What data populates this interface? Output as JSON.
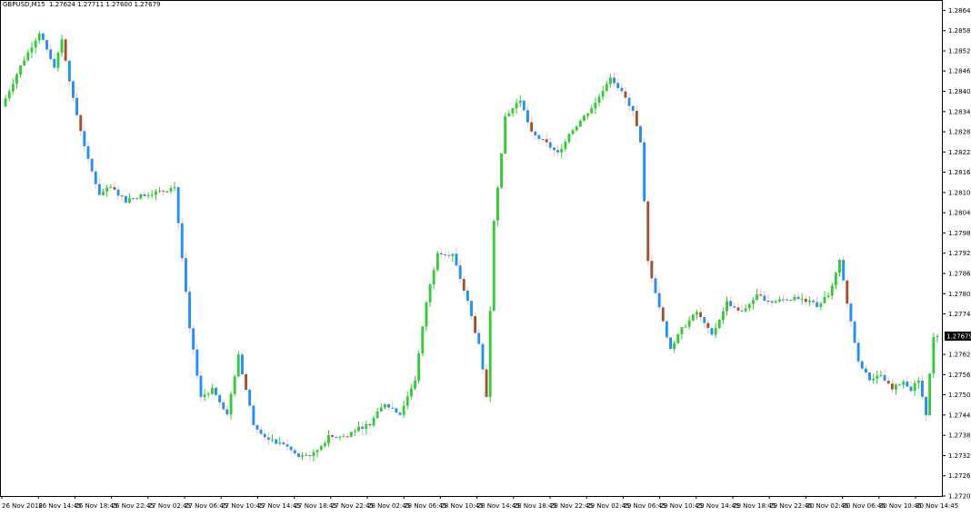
{
  "header": {
    "symbol_info": "GBPUSD,M15  1.27624 1.27711 1.27600 1.27679"
  },
  "colors": {
    "background": "#ffffff",
    "frame": "#000000",
    "bull_body": "#33cc33",
    "bear_body": "#1e90ff",
    "bull_wick": "#33cc33",
    "bear_wick": "#ffb6c1",
    "alt_bear_body": "#a0522d",
    "current_price_label_bg": "#000000",
    "current_price_label_text": "#ffffff"
  },
  "price_axis": {
    "ticks": [
      "1.28645",
      "1.28585",
      "1.28525",
      "1.28465",
      "1.28405",
      "1.28345",
      "1.28285",
      "1.28225",
      "1.28165",
      "1.28105",
      "1.28045",
      "1.27985",
      "1.27925",
      "1.27865",
      "1.27805",
      "1.27745",
      "1.27625",
      "1.27565",
      "1.27505",
      "1.27445",
      "1.27385",
      "1.27325",
      "1.27265",
      "1.27205"
    ],
    "current_price": "1.27679"
  },
  "time_axis": {
    "labels": [
      "26 Nov 2018",
      "26 Nov 14:45",
      "26 Nov 18:45",
      "26 Nov 22:45",
      "27 Nov 02:45",
      "27 Nov 06:45",
      "27 Nov 10:45",
      "27 Nov 14:45",
      "27 Nov 18:45",
      "27 Nov 22:45",
      "28 Nov 02:45",
      "28 Nov 06:45",
      "28 Nov 10:45",
      "28 Nov 14:45",
      "28 Nov 18:45",
      "28 Nov 22:45",
      "29 Nov 02:45",
      "29 Nov 06:45",
      "29 Nov 10:45",
      "29 Nov 14:45",
      "29 Nov 18:45",
      "29 Nov 22:45",
      "30 Nov 02:45",
      "30 Nov 06:45",
      "30 Nov 10:45",
      "30 Nov 14:45"
    ]
  },
  "chart_data": {
    "type": "candlestick",
    "symbol": "GBPUSD",
    "timeframe": "M15",
    "ylim": [
      1.27205,
      1.28665
    ],
    "last_bar": {
      "open": 1.27624,
      "high": 1.27711,
      "low": 1.276,
      "close": 1.27679
    },
    "close_path": [
      [
        0,
        1.2836
      ],
      [
        5,
        1.2848
      ],
      [
        10,
        1.2858
      ],
      [
        14,
        1.2848
      ],
      [
        16,
        1.2856
      ],
      [
        19,
        1.2838
      ],
      [
        23,
        1.282
      ],
      [
        26,
        1.281
      ],
      [
        29,
        1.2812
      ],
      [
        33,
        1.2808
      ],
      [
        38,
        1.281
      ],
      [
        43,
        1.2811
      ],
      [
        46,
        1.2812
      ],
      [
        50,
        1.277
      ],
      [
        53,
        1.275
      ],
      [
        56,
        1.2752
      ],
      [
        60,
        1.2745
      ],
      [
        63,
        1.2762
      ],
      [
        67,
        1.2742
      ],
      [
        71,
        1.2737
      ],
      [
        75,
        1.2736
      ],
      [
        79,
        1.2732
      ],
      [
        83,
        1.2733
      ],
      [
        87,
        1.2738
      ],
      [
        91,
        1.2738
      ],
      [
        94,
        1.274
      ],
      [
        98,
        1.2742
      ],
      [
        102,
        1.2748
      ],
      [
        106,
        1.2745
      ],
      [
        110,
        1.2755
      ],
      [
        113,
        1.2778
      ],
      [
        116,
        1.2793
      ],
      [
        120,
        1.2792
      ],
      [
        124,
        1.2778
      ],
      [
        127,
        1.2765
      ],
      [
        129,
        1.275
      ],
      [
        131,
        1.2802
      ],
      [
        134,
        1.2833
      ],
      [
        138,
        1.2838
      ],
      [
        141,
        1.2828
      ],
      [
        145,
        1.2825
      ],
      [
        148,
        1.2822
      ],
      [
        151,
        1.2828
      ],
      [
        155,
        1.2833
      ],
      [
        158,
        1.2837
      ],
      [
        162,
        1.2845
      ],
      [
        165,
        1.284
      ],
      [
        168,
        1.2835
      ],
      [
        170,
        1.2825
      ],
      [
        172,
        1.279
      ],
      [
        176,
        1.2772
      ],
      [
        178,
        1.2764
      ],
      [
        181,
        1.277
      ],
      [
        185,
        1.2775
      ],
      [
        189,
        1.2768
      ],
      [
        193,
        1.2778
      ],
      [
        197,
        1.2775
      ],
      [
        201,
        1.278
      ],
      [
        205,
        1.2778
      ],
      [
        209,
        1.2779
      ],
      [
        213,
        1.2779
      ],
      [
        217,
        1.2777
      ],
      [
        220,
        1.278
      ],
      [
        223,
        1.279
      ],
      [
        225,
        1.2778
      ],
      [
        228,
        1.276
      ],
      [
        231,
        1.2755
      ],
      [
        234,
        1.2756
      ],
      [
        237,
        1.2752
      ],
      [
        240,
        1.2755
      ],
      [
        242,
        1.2752
      ],
      [
        244,
        1.2755
      ],
      [
        246,
        1.2745
      ],
      [
        248,
        1.2768
      ]
    ]
  }
}
